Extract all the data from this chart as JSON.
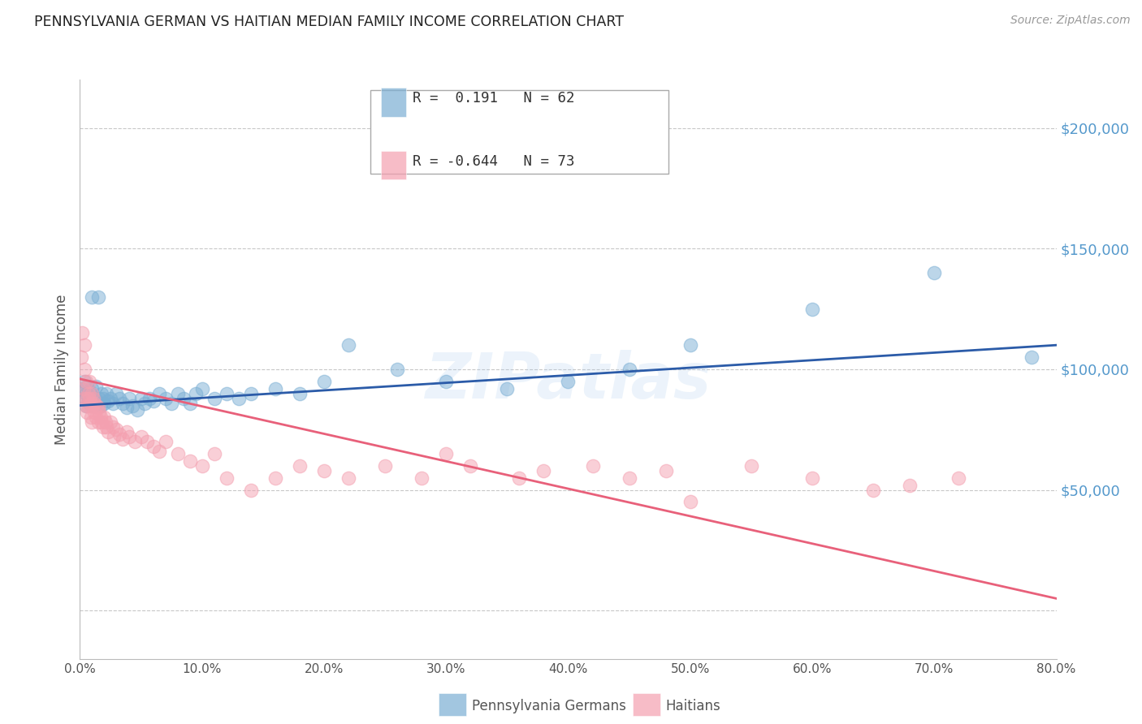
{
  "title": "PENNSYLVANIA GERMAN VS HAITIAN MEDIAN FAMILY INCOME CORRELATION CHART",
  "source": "Source: ZipAtlas.com",
  "ylabel": "Median Family Income",
  "xmin": 0.0,
  "xmax": 0.8,
  "ymin": -20000,
  "ymax": 220000,
  "yticks": [
    0,
    50000,
    100000,
    150000,
    200000
  ],
  "ytick_labels": [
    "",
    "$50,000",
    "$100,000",
    "$150,000",
    "$200,000"
  ],
  "blue_color": "#7BAFD4",
  "pink_color": "#F4A0B0",
  "blue_line_color": "#2B5BA8",
  "pink_line_color": "#E8607A",
  "legend_R_blue": "R =  0.191",
  "legend_N_blue": "N = 62",
  "legend_R_pink": "R = -0.644",
  "legend_N_pink": "N = 73",
  "legend_label_blue": "Pennsylvania Germans",
  "legend_label_pink": "Haitians",
  "watermark": "ZIPatlas",
  "blue_scatter_x": [
    0.002,
    0.003,
    0.004,
    0.005,
    0.005,
    0.006,
    0.007,
    0.008,
    0.008,
    0.009,
    0.01,
    0.01,
    0.011,
    0.012,
    0.013,
    0.014,
    0.015,
    0.016,
    0.017,
    0.018,
    0.019,
    0.02,
    0.022,
    0.023,
    0.025,
    0.027,
    0.03,
    0.032,
    0.035,
    0.038,
    0.04,
    0.043,
    0.047,
    0.05,
    0.053,
    0.057,
    0.06,
    0.065,
    0.07,
    0.075,
    0.08,
    0.085,
    0.09,
    0.095,
    0.1,
    0.11,
    0.12,
    0.13,
    0.14,
    0.16,
    0.18,
    0.2,
    0.22,
    0.26,
    0.3,
    0.35,
    0.4,
    0.45,
    0.5,
    0.6,
    0.7,
    0.78
  ],
  "blue_scatter_y": [
    92000,
    88000,
    95000,
    90000,
    85000,
    93000,
    87000,
    91000,
    86000,
    88000,
    130000,
    92000,
    88000,
    85000,
    93000,
    87000,
    130000,
    88000,
    85000,
    90000,
    88000,
    86000,
    90000,
    87000,
    88000,
    86000,
    90000,
    88000,
    86000,
    84000,
    88000,
    85000,
    83000,
    88000,
    86000,
    88000,
    87000,
    90000,
    88000,
    86000,
    90000,
    88000,
    86000,
    90000,
    92000,
    88000,
    90000,
    88000,
    90000,
    92000,
    90000,
    95000,
    110000,
    100000,
    95000,
    92000,
    95000,
    100000,
    110000,
    125000,
    140000,
    105000
  ],
  "pink_scatter_x": [
    0.001,
    0.002,
    0.003,
    0.003,
    0.004,
    0.004,
    0.005,
    0.005,
    0.006,
    0.006,
    0.007,
    0.007,
    0.008,
    0.008,
    0.009,
    0.009,
    0.01,
    0.01,
    0.01,
    0.011,
    0.012,
    0.012,
    0.013,
    0.014,
    0.015,
    0.015,
    0.016,
    0.017,
    0.018,
    0.019,
    0.02,
    0.021,
    0.022,
    0.023,
    0.025,
    0.027,
    0.028,
    0.03,
    0.032,
    0.035,
    0.038,
    0.04,
    0.045,
    0.05,
    0.055,
    0.06,
    0.065,
    0.07,
    0.08,
    0.09,
    0.1,
    0.11,
    0.12,
    0.14,
    0.16,
    0.18,
    0.2,
    0.22,
    0.25,
    0.28,
    0.3,
    0.32,
    0.36,
    0.38,
    0.42,
    0.45,
    0.48,
    0.5,
    0.55,
    0.6,
    0.65,
    0.68,
    0.72
  ],
  "pink_scatter_y": [
    105000,
    115000,
    92000,
    88000,
    110000,
    100000,
    95000,
    85000,
    88000,
    82000,
    90000,
    85000,
    95000,
    88000,
    86000,
    80000,
    90000,
    85000,
    78000,
    88000,
    86000,
    82000,
    80000,
    85000,
    84000,
    78000,
    82000,
    80000,
    78000,
    76000,
    80000,
    78000,
    76000,
    74000,
    78000,
    76000,
    72000,
    75000,
    73000,
    71000,
    74000,
    72000,
    70000,
    72000,
    70000,
    68000,
    66000,
    70000,
    65000,
    62000,
    60000,
    65000,
    55000,
    50000,
    55000,
    60000,
    58000,
    55000,
    60000,
    55000,
    65000,
    60000,
    55000,
    58000,
    60000,
    55000,
    58000,
    45000,
    60000,
    55000,
    50000,
    52000,
    55000
  ],
  "blue_trend_x": [
    0.0,
    0.8
  ],
  "blue_trend_y": [
    85000,
    110000
  ],
  "pink_trend_x": [
    0.0,
    0.8
  ],
  "pink_trend_y": [
    96000,
    5000
  ],
  "background_color": "#FFFFFF",
  "grid_color": "#C8C8C8",
  "title_color": "#222222",
  "source_color": "#999999",
  "axis_label_color": "#555555",
  "ytick_color": "#5599CC",
  "xtick_positions": [
    0.0,
    0.1,
    0.2,
    0.3,
    0.4,
    0.5,
    0.6,
    0.7,
    0.8
  ],
  "xtick_labels": [
    "0.0%",
    "10.0%",
    "20.0%",
    "30.0%",
    "40.0%",
    "50.0%",
    "60.0%",
    "70.0%",
    "80.0%"
  ]
}
